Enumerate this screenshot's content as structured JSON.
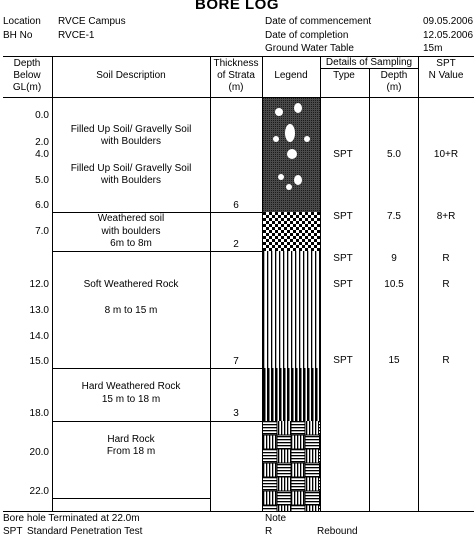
{
  "title": "BORE LOG",
  "header": {
    "location_label": "Location",
    "location_value": "RVCE Campus",
    "bh_label": "BH No",
    "bh_value": "RVCE-1",
    "commencement_label": "Date of commencement",
    "commencement_value": "09.05.2006",
    "completion_label": "Date of completion",
    "completion_value": "12.05.2006",
    "gwt_label": "Ground Water Table",
    "gwt_value": "15m"
  },
  "columns": {
    "depth": [
      "Depth",
      "Below",
      "GL(m)"
    ],
    "description": "Soil Description",
    "thickness": [
      "Thickness",
      "of Strata",
      "(m)"
    ],
    "legend": "Legend",
    "sampling": "Details of Sampling",
    "type": "Type",
    "sample_depth": [
      "Depth",
      "(m)"
    ],
    "spt": [
      "SPT",
      "N Value"
    ]
  },
  "depth_ticks": [
    "0.0",
    "2.0",
    "4.0",
    "5.0",
    "6.0",
    "7.0",
    "12.0",
    "13.0",
    "14.0",
    "15.0",
    "18.0",
    "20.0",
    "22.0"
  ],
  "strata": [
    {
      "lines": [
        "Filled Up Soil/ Gravelly Soil",
        "with Boulders",
        "",
        "Filled Up Soil/ Gravelly Soil",
        "with Boulders"
      ],
      "thickness": "6",
      "pattern": "boulders"
    },
    {
      "lines": [
        "Weathered soil",
        "with boulders",
        "6m to 8m"
      ],
      "thickness": "2",
      "pattern": "checker"
    },
    {
      "lines": [
        "Soft Weathered Rock",
        "",
        "8 m to 15 m"
      ],
      "thickness": "7",
      "pattern": "vertical"
    },
    {
      "lines": [
        "Hard  Weathered Rock",
        "15 m to 18 m"
      ],
      "thickness": "3",
      "pattern": "vertical-bold"
    },
    {
      "lines": [
        "Hard   Rock",
        "From 18 m"
      ],
      "thickness": "",
      "pattern": "basket"
    }
  ],
  "samples": [
    {
      "type": "SPT",
      "depth": "5.0",
      "n": "10+R"
    },
    {
      "type": "SPT",
      "depth": "7.5",
      "n": "8+R"
    },
    {
      "type": "SPT",
      "depth": "9",
      "n": "R"
    },
    {
      "type": "SPT",
      "depth": "10.5",
      "n": "R"
    },
    {
      "type": "SPT",
      "depth": "15",
      "n": "R"
    }
  ],
  "footer": {
    "terminated": "Bore hole Terminated at 22.0m",
    "spt_abbr": "SPT",
    "spt_full": "Standard Penetration Test",
    "note_label": "Note",
    "r_abbr": "R",
    "r_full": "Rebound"
  }
}
